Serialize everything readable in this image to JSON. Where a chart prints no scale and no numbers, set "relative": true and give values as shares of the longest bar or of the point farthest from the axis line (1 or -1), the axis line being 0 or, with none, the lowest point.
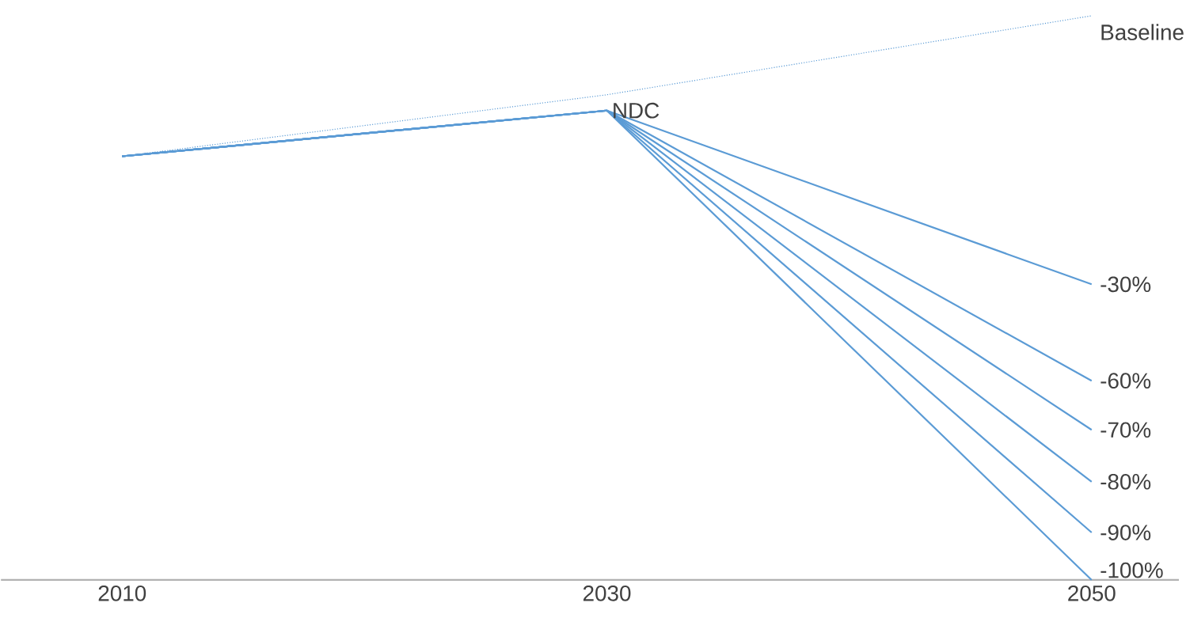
{
  "chart_data": {
    "type": "line",
    "relative": true,
    "categories": [
      "2010",
      "2030",
      "2050"
    ],
    "marker": "none",
    "annotations": [
      {
        "text": "NDC",
        "x": "2030",
        "y": 0.832
      }
    ],
    "series": [
      {
        "name": "Baseline",
        "color": "#5b9bd5",
        "line_style": "dotted",
        "values": [
          0.751,
          0.86,
          1
        ]
      },
      {
        "name": "-30%",
        "color": "#5b9bd5",
        "line_style": "solid",
        "values": [
          0.751,
          0.832,
          0.524
        ]
      },
      {
        "name": "-60%",
        "color": "#5b9bd5",
        "line_style": "solid",
        "values": [
          0.751,
          0.832,
          0.353
        ]
      },
      {
        "name": "-70%",
        "color": "#5b9bd5",
        "line_style": "solid",
        "values": [
          0.751,
          0.832,
          0.266
        ]
      },
      {
        "name": "-80%",
        "color": "#5b9bd5",
        "line_style": "solid",
        "values": [
          0.751,
          0.832,
          0.174
        ]
      },
      {
        "name": "-90%",
        "color": "#5b9bd5",
        "line_style": "solid",
        "values": [
          0.751,
          0.832,
          0.084
        ]
      },
      {
        "name": "-100%",
        "color": "#5b9bd5",
        "line_style": "solid",
        "values": [
          0.751,
          0.832,
          0
        ]
      }
    ]
  }
}
